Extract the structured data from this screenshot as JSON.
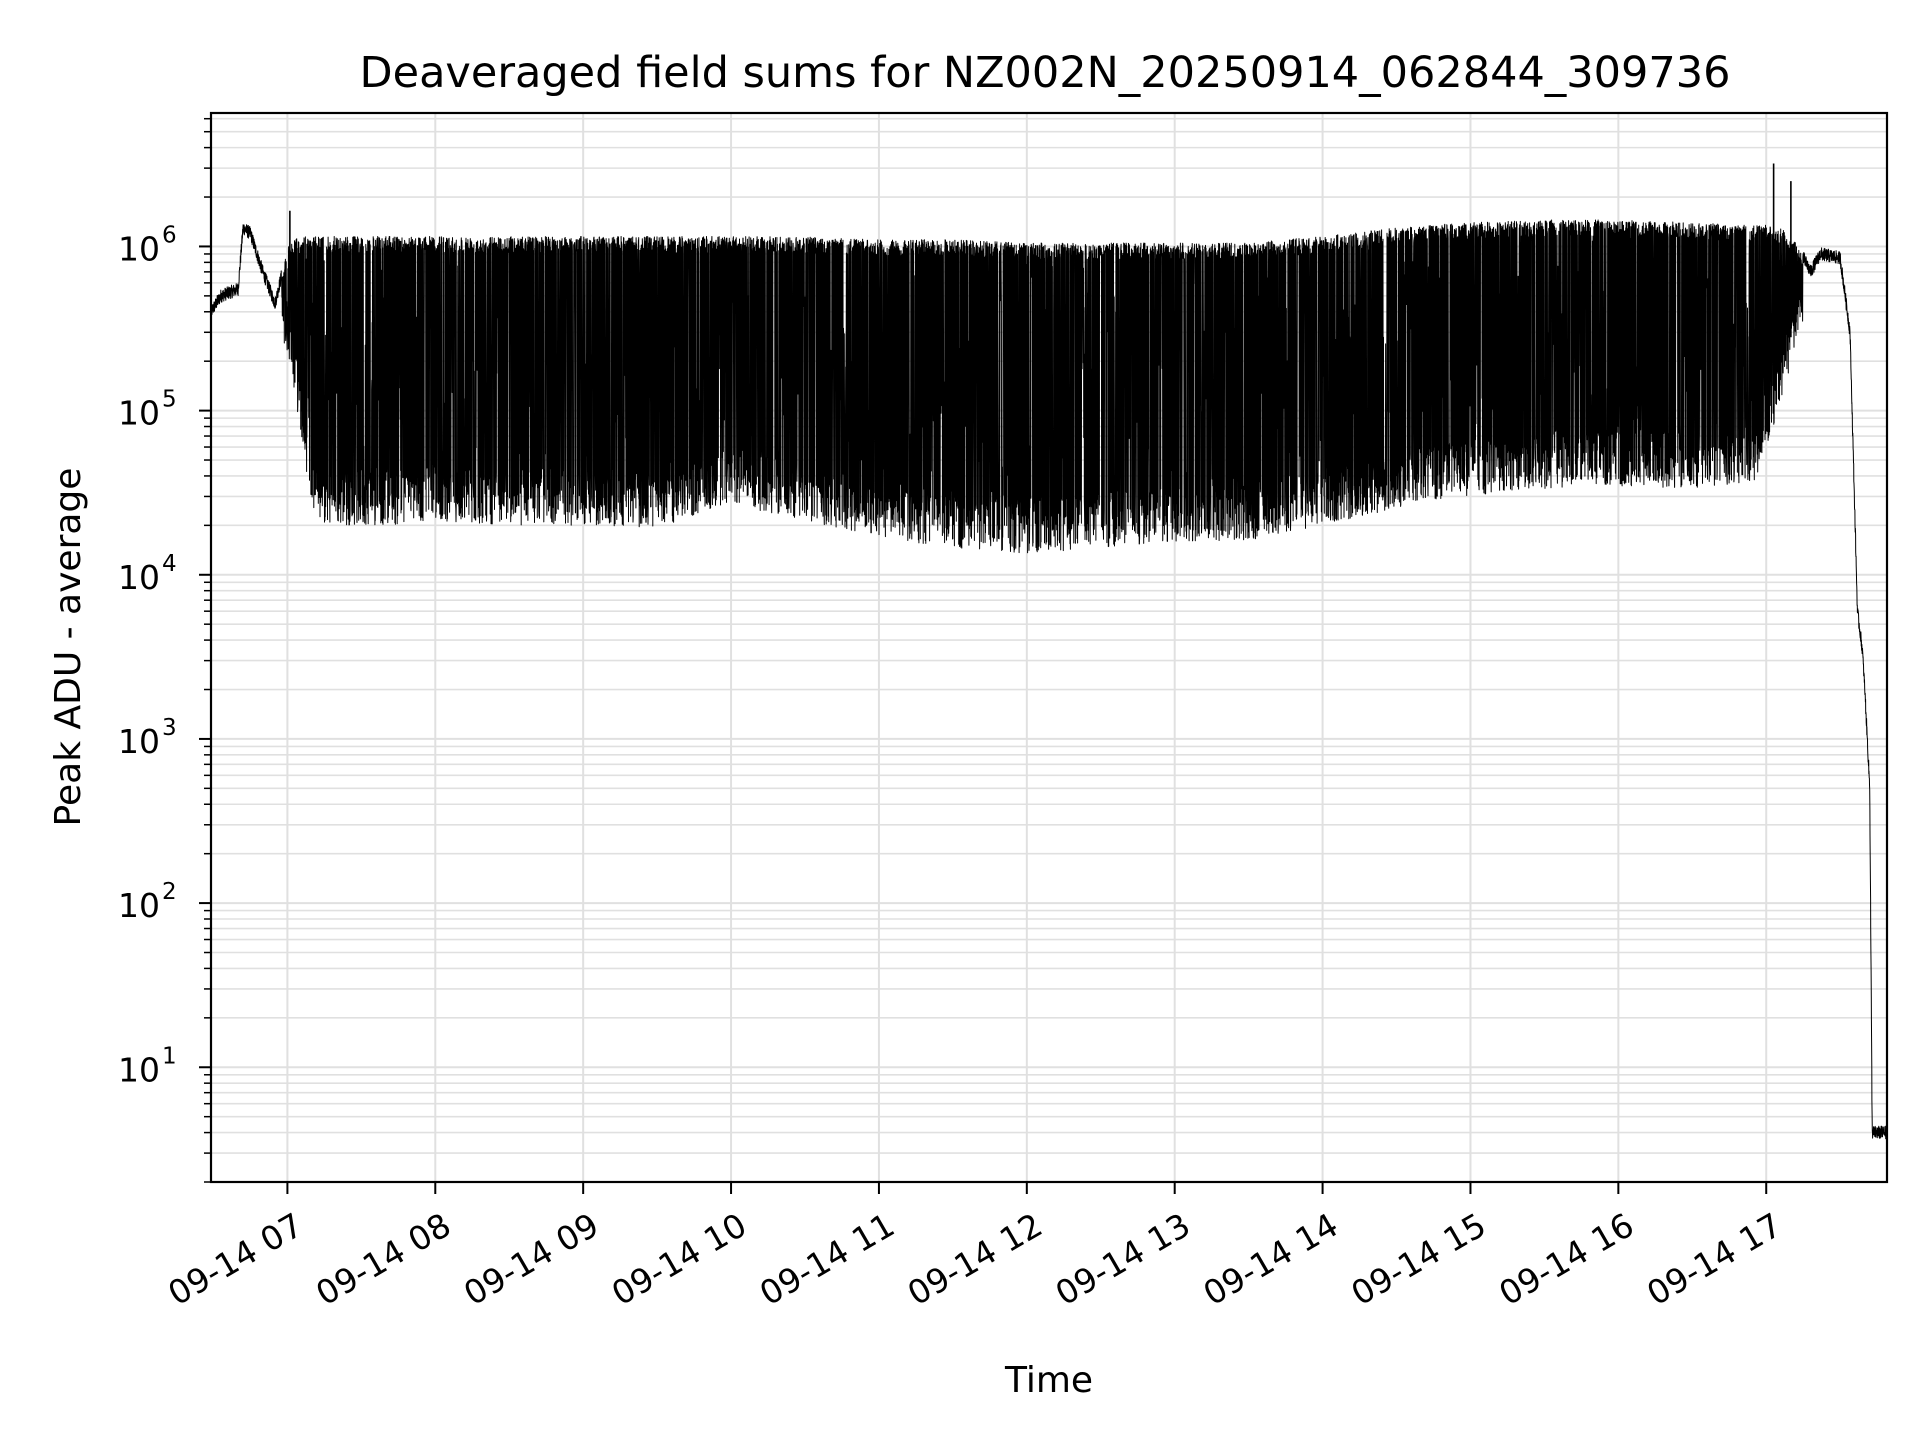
{
  "chart_data": {
    "type": "line",
    "title": "Deaveraged field sums for NZ002N_20250914_062844_309736",
    "xlabel": "Time",
    "ylabel": "Peak ADU - average",
    "yscale": "log",
    "grid": true,
    "grid_minor": true,
    "line_color": "#000000",
    "grid_color": "#e0e0e0",
    "xlim": [
      "2025-09-14 06:29",
      "2025-09-14 17:49"
    ],
    "ylim": [
      2,
      6500000
    ],
    "x_ticks": [
      "09-14 07",
      "09-14 08",
      "09-14 09",
      "09-14 10",
      "09-14 11",
      "09-14 12",
      "09-14 13",
      "09-14 14",
      "09-14 15",
      "09-14 16",
      "09-14 17"
    ],
    "y_ticks": [
      {
        "base": "10",
        "exp": "1"
      },
      {
        "base": "10",
        "exp": "2"
      },
      {
        "base": "10",
        "exp": "3"
      },
      {
        "base": "10",
        "exp": "4"
      },
      {
        "base": "10",
        "exp": "5"
      },
      {
        "base": "10",
        "exp": "6"
      }
    ],
    "series": [
      {
        "x": [
          "2025-09-14 06:29",
          "2025-09-14 06:33",
          "2025-09-14 06:40",
          "2025-09-14 06:42",
          "2025-09-14 06:45",
          "2025-09-14 06:50",
          "2025-09-14 06:55",
          "2025-09-14 07:01",
          "2025-09-14 07:05",
          "2025-09-14 07:08",
          "2025-09-14 07:10",
          "2025-09-14 07:15",
          "2025-09-14 07:30",
          "2025-09-14 07:45",
          "2025-09-14 08:00",
          "2025-09-14 08:30",
          "2025-09-14 09:00",
          "2025-09-14 09:30",
          "2025-09-14 10:00",
          "2025-09-14 10:30",
          "2025-09-14 11:00",
          "2025-09-14 11:30",
          "2025-09-14 12:00",
          "2025-09-14 12:30",
          "2025-09-14 13:00",
          "2025-09-14 13:30",
          "2025-09-14 14:00",
          "2025-09-14 14:30",
          "2025-09-14 15:00",
          "2025-09-14 15:30",
          "2025-09-14 16:00",
          "2025-09-14 16:30",
          "2025-09-14 16:55",
          "2025-09-14 17:00",
          "2025-09-14 17:05",
          "2025-09-14 17:10",
          "2025-09-14 17:18",
          "2025-09-14 17:22",
          "2025-09-14 17:30",
          "2025-09-14 17:34",
          "2025-09-14 17:37",
          "2025-09-14 17:39",
          "2025-09-14 17:40",
          "2025-09-14 17:42",
          "2025-09-14 17:43",
          "2025-09-14 17:49"
        ],
        "baseline": [
          400000,
          500000,
          550000,
          1300000,
          1200000,
          700000,
          450000,
          300000,
          120000,
          60000,
          40000,
          30000,
          30000,
          30000,
          32000,
          30000,
          30000,
          29000,
          40000,
          32000,
          25000,
          22000,
          20000,
          22000,
          24000,
          24000,
          30000,
          38000,
          45000,
          50000,
          52000,
          50000,
          55000,
          80000,
          150000,
          280000,
          700000,
          900000,
          850000,
          300000,
          6000,
          3500,
          2000,
          500,
          4,
          4
        ],
        "peak": [
          400000,
          500000,
          550000,
          1300000,
          1200000,
          700000,
          450000,
          1100000,
          1150000,
          1150000,
          1150000,
          1150000,
          1150000,
          1150000,
          1150000,
          1150000,
          1150000,
          1150000,
          1150000,
          1150000,
          1100000,
          1100000,
          1050000,
          1050000,
          1050000,
          1050000,
          1150000,
          1300000,
          1400000,
          1450000,
          1450000,
          1400000,
          1350000,
          1350000,
          1300000,
          1200000,
          700000,
          900000,
          850000,
          300000,
          6000,
          3500,
          2000,
          500,
          4,
          4
        ]
      }
    ],
    "spikes": [
      {
        "x": "2025-09-14 07:01",
        "y": 1650000
      },
      {
        "x": "2025-09-14 17:03",
        "y": 3200000
      },
      {
        "x": "2025-09-14 17:10",
        "y": 2500000
      }
    ]
  }
}
